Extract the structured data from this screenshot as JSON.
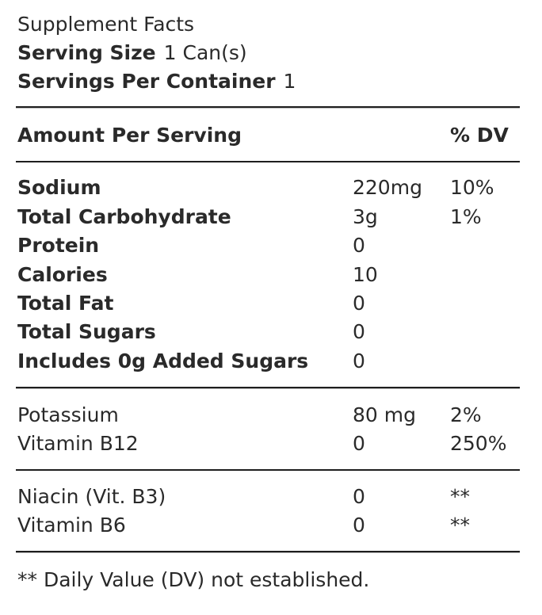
{
  "title": "Supplement Facts",
  "serving_size": {
    "label": "Serving Size",
    "value": "1 Can(s)"
  },
  "servings_per_container": {
    "label": "Servings Per Container",
    "value": "1"
  },
  "header": {
    "amount_label": "Amount Per Serving",
    "dv_label": "% DV"
  },
  "main_nutrients": [
    {
      "name": "Sodium",
      "amount": "220mg",
      "dv": "10%"
    },
    {
      "name": "Total Carbohydrate",
      "amount": "3g",
      "dv": "1%"
    },
    {
      "name": "Protein",
      "amount": "0",
      "dv": ""
    },
    {
      "name": "Calories",
      "amount": "10",
      "dv": ""
    },
    {
      "name": "Total Fat",
      "amount": "0",
      "dv": ""
    },
    {
      "name": "Total Sugars",
      "amount": "0",
      "dv": ""
    },
    {
      "name": "Includes 0g Added Sugars",
      "amount": "0",
      "dv": ""
    }
  ],
  "vitamins_minerals": [
    {
      "name": "Potassium",
      "amount": "80 mg",
      "dv": "2%"
    },
    {
      "name": "Vitamin B12",
      "amount": "0",
      "dv": "250%"
    }
  ],
  "other_ingredients": [
    {
      "name": "Niacin (Vit. B3)",
      "amount": "0",
      "dv": "**"
    },
    {
      "name": "Vitamin B6",
      "amount": "0",
      "dv": "**"
    }
  ],
  "footnote": "** Daily Value (DV) not established."
}
